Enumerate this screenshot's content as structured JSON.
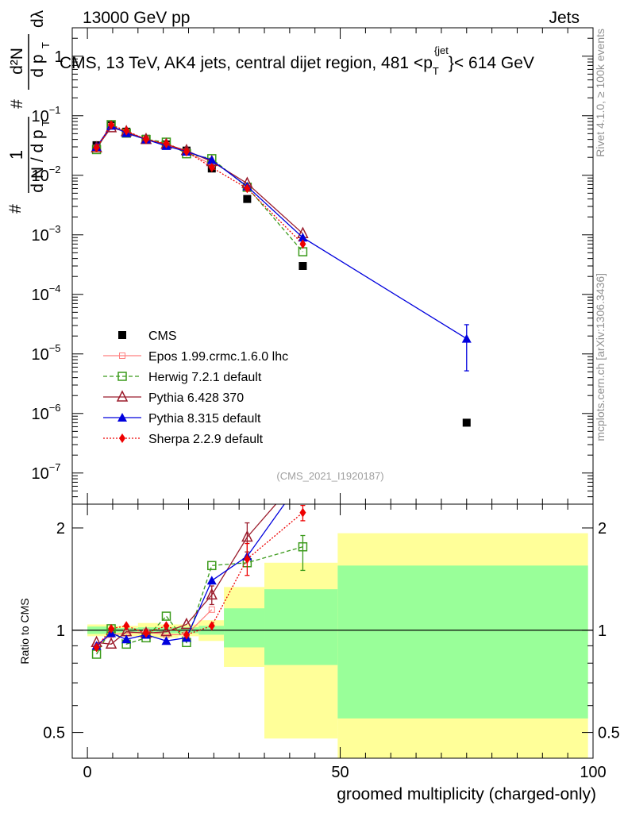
{
  "header": {
    "beam": "13000 GeV pp",
    "category": "Jets",
    "side_label": "Rivet 4.1.0, ≥ 100k events",
    "side_url": "mcplots.cern.ch [arXiv:1306.3436]",
    "analysis_id": "(CMS_2021_I1920187)"
  },
  "chart_data": [
    {
      "type": "line",
      "title": "CMS, 13 TeV, AK4 jets, central dijet region, 481 < p_T^{jet} < 614 GeV",
      "title_parts": {
        "main": "CMS, 13 TeV, AK4 jets, central dijet region, 481 <p",
        "sub": "T",
        "sup": "{jet",
        "tail": "}< 614 GeV"
      },
      "ylabel": "1/dN/dp_T · d²N/dp_T dλ",
      "ylabel_parts": {
        "one": "1",
        "hash1": "#",
        "frac_den1": "d N / d p",
        "subT1": "T",
        "hash2": "#",
        "frac_num": "d²N",
        "frac_den2": "d p",
        "subT2": "T",
        "dlambda": "dλ"
      },
      "yscale": "log",
      "ylim": [
        3e-08,
        3
      ],
      "xlim": [
        -3,
        100
      ],
      "yticks": [
        {
          "v": 1e-07,
          "base": "10",
          "exp": "−7"
        },
        {
          "v": 1e-06,
          "base": "10",
          "exp": "−6"
        },
        {
          "v": 1e-05,
          "base": "10",
          "exp": "−5"
        },
        {
          "v": 0.0001,
          "base": "10",
          "exp": "−4"
        },
        {
          "v": 0.001,
          "base": "10",
          "exp": "−3"
        },
        {
          "v": 0.01,
          "base": "10",
          "exp": "−2"
        },
        {
          "v": 0.1,
          "base": "10",
          "exp": "−1"
        },
        {
          "v": 1,
          "base": "1",
          "exp": ""
        }
      ],
      "series": [
        {
          "name": "CMS",
          "color": "#000000",
          "marker": "square",
          "line": "none",
          "points": [
            [
              1.8,
              0.032
            ],
            [
              4.7,
              0.069
            ],
            [
              7.7,
              0.054
            ],
            [
              11.6,
              0.041
            ],
            [
              15.6,
              0.033
            ],
            [
              19.6,
              0.026
            ],
            [
              24.6,
              0.013
            ],
            [
              31.6,
              0.004
            ],
            [
              42.6,
              0.0003
            ],
            [
              75,
              7e-07
            ]
          ]
        },
        {
          "name": "Epos 1.99.crmc.1.6.0 lhc",
          "color": "#ff8080",
          "marker": "cross",
          "line": "solid",
          "points": [
            [
              1.8,
              0.029
            ],
            [
              4.7,
              0.067
            ],
            [
              7.7,
              0.053
            ],
            [
              11.6,
              0.041
            ],
            [
              15.6,
              0.032
            ],
            [
              19.6,
              0.025
            ],
            [
              24.6,
              0.015
            ]
          ]
        },
        {
          "name": "Herwig 7.2.1 default",
          "color": "#3a9a1a",
          "marker": "open-square",
          "line": "dashed",
          "points": [
            [
              1.8,
              0.027
            ],
            [
              4.7,
              0.071
            ],
            [
              7.7,
              0.051
            ],
            [
              11.6,
              0.04
            ],
            [
              15.6,
              0.036
            ],
            [
              19.6,
              0.023
            ],
            [
              24.6,
              0.019
            ],
            [
              31.6,
              0.0063
            ],
            [
              42.6,
              0.00052
            ]
          ]
        },
        {
          "name": "Pythia 6.428 370",
          "color": "#9b1c2c",
          "marker": "open-triangle",
          "line": "solid",
          "points": [
            [
              1.8,
              0.029
            ],
            [
              4.7,
              0.063
            ],
            [
              7.7,
              0.054
            ],
            [
              11.6,
              0.04
            ],
            [
              15.6,
              0.033
            ],
            [
              19.6,
              0.026
            ],
            [
              24.6,
              0.017
            ],
            [
              31.6,
              0.0073
            ],
            [
              42.6,
              0.00105
            ]
          ]
        },
        {
          "name": "Pythia 8.315 default",
          "color": "#0000dd",
          "marker": "triangle",
          "line": "solid",
          "points": [
            [
              1.8,
              0.03
            ],
            [
              4.7,
              0.068
            ],
            [
              7.7,
              0.051
            ],
            [
              11.6,
              0.04
            ],
            [
              15.6,
              0.031
            ],
            [
              19.6,
              0.025
            ],
            [
              24.6,
              0.018
            ],
            [
              31.6,
              0.0065
            ],
            [
              42.6,
              0.0009
            ],
            [
              75,
              1.8e-05
            ]
          ],
          "errors": [
            [
              75,
              5.2e-06,
              3.1e-05
            ]
          ]
        },
        {
          "name": "Sherpa 2.2.9 default",
          "color": "#ee0000",
          "marker": "diamond",
          "line": "dotted",
          "points": [
            [
              1.8,
              0.029
            ],
            [
              4.7,
              0.07
            ],
            [
              7.7,
              0.056
            ],
            [
              11.6,
              0.04
            ],
            [
              15.6,
              0.034
            ],
            [
              19.6,
              0.025
            ],
            [
              24.6,
              0.0135
            ],
            [
              31.6,
              0.006
            ],
            [
              42.6,
              0.0007
            ]
          ]
        }
      ]
    },
    {
      "type": "line",
      "ylabel": "Ratio to CMS",
      "xlabel": "groomed multiplicity (charged-only)",
      "yscale": "log",
      "ylim": [
        0.42,
        2.35
      ],
      "xlim": [
        -3,
        100
      ],
      "xticks": [
        0,
        50,
        100
      ],
      "yticks": [
        0.5,
        1,
        2
      ],
      "reference": 1,
      "uncertainty_bands": [
        {
          "x0": 0,
          "x1": 4,
          "green": [
            0.975,
            1.025
          ],
          "yellow": [
            0.96,
            1.04
          ]
        },
        {
          "x0": 4,
          "x1": 10,
          "green": [
            0.985,
            1.015
          ],
          "yellow": [
            0.96,
            1.03
          ]
        },
        {
          "x0": 10,
          "x1": 14,
          "green": [
            0.98,
            1.02
          ],
          "yellow": [
            0.95,
            1.05
          ]
        },
        {
          "x0": 14,
          "x1": 18,
          "green": [
            0.98,
            1.02
          ],
          "yellow": [
            0.95,
            1.04
          ]
        },
        {
          "x0": 18,
          "x1": 22,
          "green": [
            0.98,
            1.02
          ],
          "yellow": [
            0.96,
            1.04
          ]
        },
        {
          "x0": 22,
          "x1": 27,
          "green": [
            0.97,
            1.03
          ],
          "yellow": [
            0.93,
            1.07
          ]
        },
        {
          "x0": 27,
          "x1": 35,
          "green": [
            0.89,
            1.16
          ],
          "yellow": [
            0.78,
            1.34
          ]
        },
        {
          "x0": 35,
          "x1": 49.5,
          "green": [
            0.79,
            1.32
          ],
          "yellow": [
            0.48,
            1.58
          ]
        },
        {
          "x0": 49.5,
          "x1": 99,
          "green": [
            0.55,
            1.55
          ],
          "yellow": [
            0.38,
            1.93
          ]
        }
      ],
      "series": [
        {
          "name": "Epos 1.99.crmc.1.6.0 lhc",
          "color": "#ff8080",
          "marker": "cross",
          "line": "solid",
          "points": [
            [
              1.8,
              0.9
            ],
            [
              4.7,
              0.97
            ],
            [
              7.7,
              0.98
            ],
            [
              11.6,
              0.99
            ],
            [
              15.6,
              0.97
            ],
            [
              19.6,
              0.97
            ],
            [
              24.6,
              1.15
            ]
          ]
        },
        {
          "name": "Herwig 7.2.1 default",
          "color": "#3a9a1a",
          "marker": "open-square",
          "line": "dashed",
          "points": [
            [
              1.8,
              0.85
            ],
            [
              4.7,
              1.01
            ],
            [
              7.7,
              0.91
            ],
            [
              11.6,
              0.95
            ],
            [
              15.6,
              1.1
            ],
            [
              19.6,
              0.92
            ],
            [
              24.6,
              1.55
            ],
            [
              31.6,
              1.58
            ],
            [
              42.6,
              1.76
            ]
          ],
          "errors": [
            [
              42.6,
              1.5,
              1.9
            ]
          ]
        },
        {
          "name": "Pythia 6.428 370",
          "color": "#9b1c2c",
          "marker": "open-triangle",
          "line": "solid",
          "points": [
            [
              1.8,
              0.92
            ],
            [
              4.7,
              0.91
            ],
            [
              7.7,
              0.99
            ],
            [
              11.6,
              0.98
            ],
            [
              15.6,
              0.99
            ],
            [
              19.6,
              1.04
            ],
            [
              24.6,
              1.27
            ],
            [
              31.6,
              1.88
            ],
            [
              37.8,
              2.4
            ]
          ],
          "errors": [
            [
              31.6,
              1.7,
              2.07
            ],
            [
              24.6,
              1.19,
              1.35
            ]
          ]
        },
        {
          "name": "Pythia 8.315 default",
          "color": "#0000dd",
          "marker": "triangle",
          "line": "solid",
          "points": [
            [
              1.8,
              0.9
            ],
            [
              4.7,
              0.98
            ],
            [
              7.7,
              0.94
            ],
            [
              11.6,
              0.97
            ],
            [
              15.6,
              0.93
            ],
            [
              19.6,
              0.95
            ],
            [
              24.6,
              1.4
            ],
            [
              31.6,
              1.65
            ],
            [
              39.4,
              2.4
            ]
          ]
        },
        {
          "name": "Sherpa 2.2.9 default",
          "color": "#ee0000",
          "marker": "diamond",
          "line": "dotted",
          "points": [
            [
              1.8,
              0.89
            ],
            [
              4.7,
              1.01
            ],
            [
              7.7,
              1.03
            ],
            [
              11.6,
              0.98
            ],
            [
              15.6,
              1.03
            ],
            [
              19.6,
              0.97
            ],
            [
              24.6,
              1.03
            ],
            [
              31.6,
              1.62
            ],
            [
              42.6,
              2.22
            ]
          ],
          "errors": [
            [
              31.6,
              1.45,
              1.8
            ],
            [
              42.6,
              2.1,
              2.33
            ]
          ]
        }
      ]
    }
  ]
}
